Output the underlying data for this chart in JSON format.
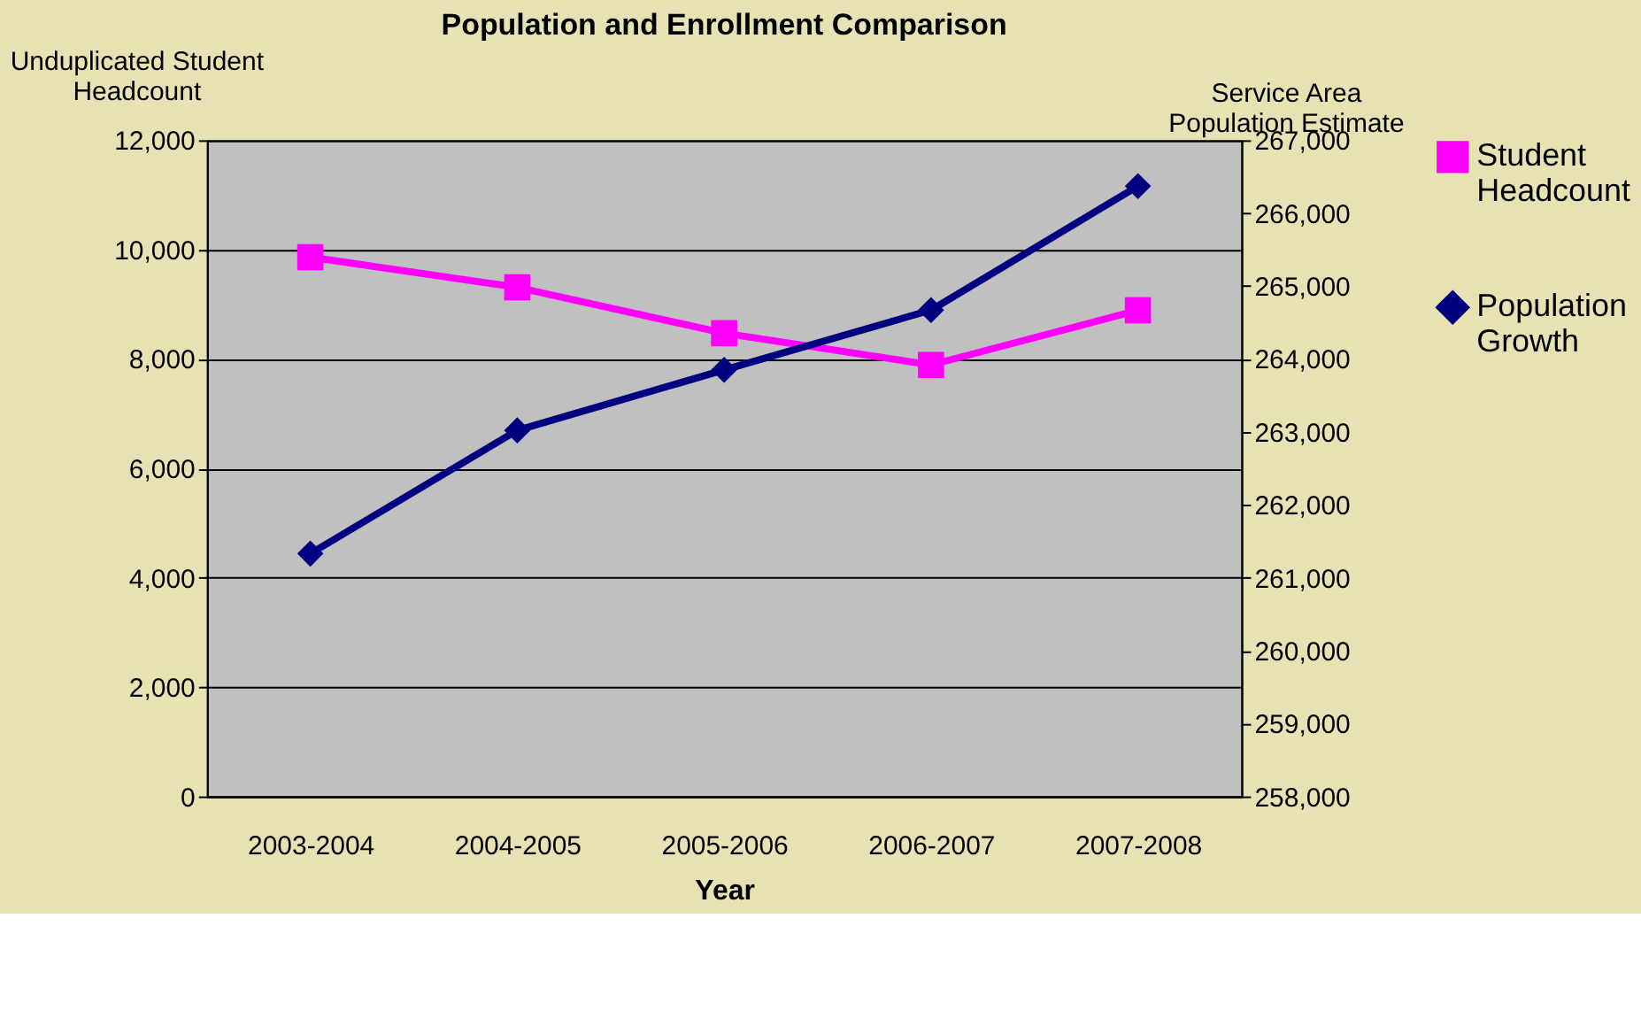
{
  "chart_data": {
    "type": "line",
    "title": "Population and Enrollment Comparison",
    "xlabel": "Year",
    "ylabel": "Unduplicated Student Headcount",
    "y2label": "Service Area Population Estimate",
    "categories": [
      "2003-2004",
      "2004-2005",
      "2005-2006",
      "2006-2007",
      "2007-2008"
    ],
    "series": [
      {
        "name": "Student Headcount",
        "color": "#ff00ff",
        "marker": "square",
        "values": [
          9860,
          9310,
          8470,
          7890,
          8890
        ]
      },
      {
        "name": "Population Growth",
        "color": "#000080",
        "marker": "diamond",
        "axis": "y2",
        "values": [
          261330,
          263020,
          263850,
          264670,
          266370
        ]
      }
    ],
    "ylim": [
      0,
      12000
    ],
    "yticks": [
      0,
      {
        "value": 2000,
        "label": "2,000"
      },
      {
        "value": 4000,
        "label": "4,000"
      },
      {
        "value": 6000,
        "label": "6,000"
      },
      {
        "value": 8000,
        "label": "8,000"
      },
      {
        "value": 10000,
        "label": "10,000"
      },
      {
        "value": 12000,
        "label": "12,000"
      }
    ],
    "y2lim": [
      258000,
      267000
    ],
    "y2ticks": [
      {
        "value": 258000,
        "label": "258,000"
      },
      {
        "value": 259000,
        "label": "259,000"
      },
      {
        "value": 260000,
        "label": "260,000"
      },
      {
        "value": 261000,
        "label": "261,000"
      },
      {
        "value": 262000,
        "label": "262,000"
      },
      {
        "value": 263000,
        "label": "263,000"
      },
      {
        "value": 264000,
        "label": "264,000"
      },
      {
        "value": 265000,
        "label": "265,000"
      },
      {
        "value": 266000,
        "label": "266,000"
      },
      {
        "value": 267000,
        "label": "267,000"
      }
    ],
    "grid": "y",
    "legend": "right"
  }
}
